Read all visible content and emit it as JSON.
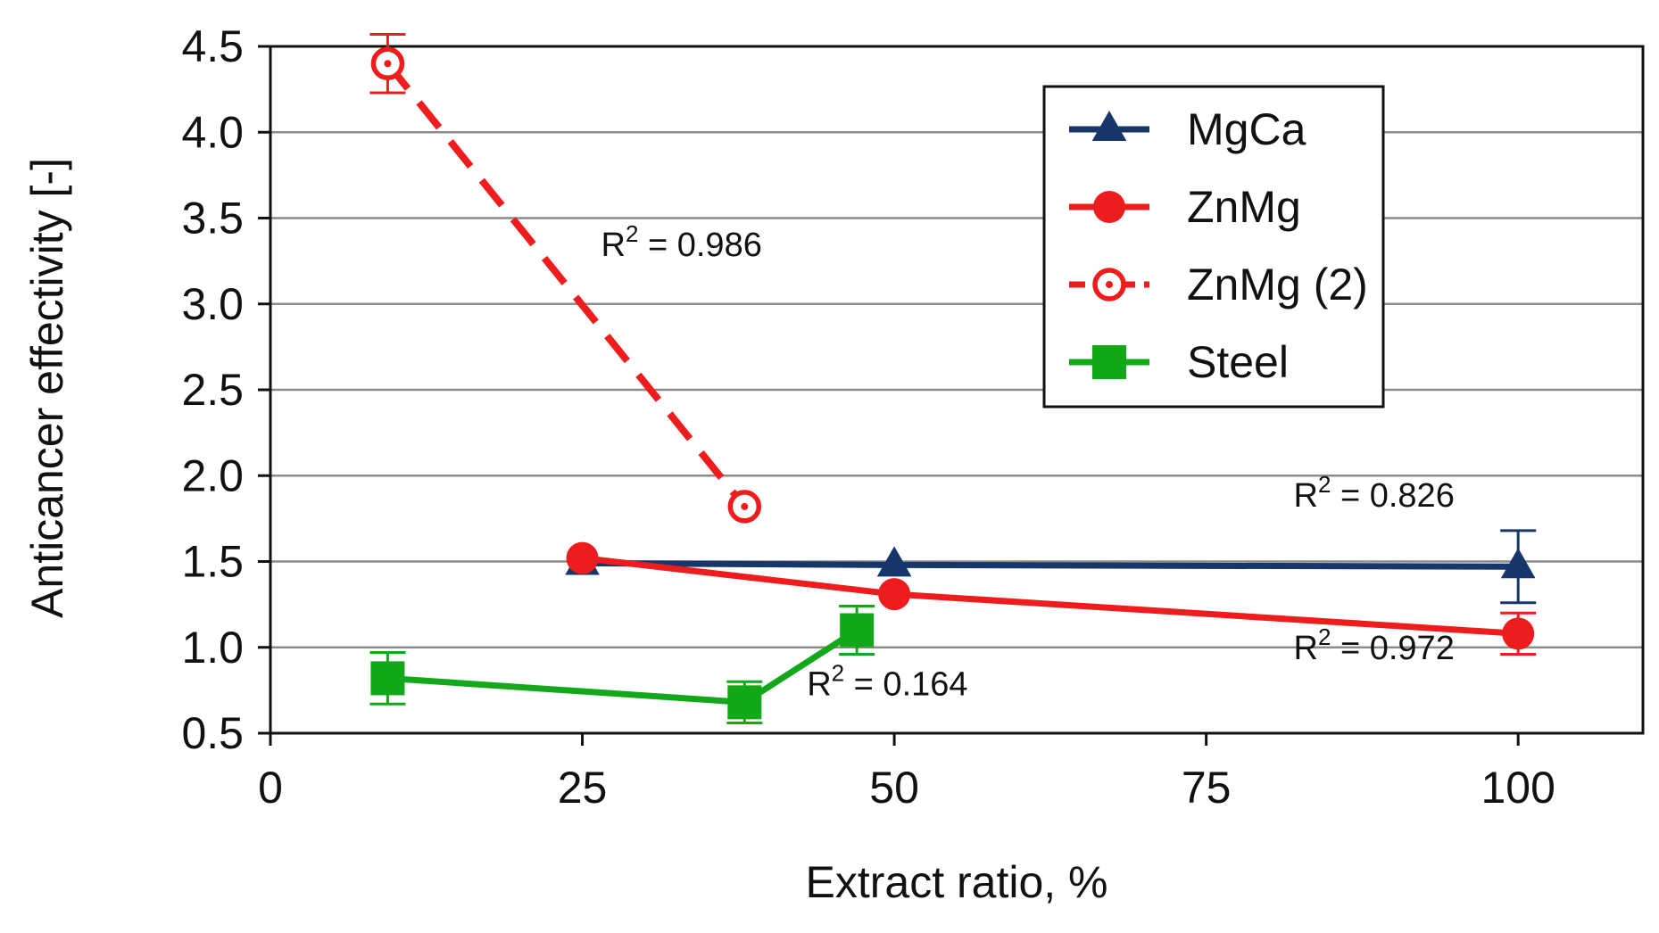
{
  "chart_data": {
    "type": "line",
    "title": "",
    "xlabel": "Extract ratio, %",
    "ylabel": "Anticancer effectivity [-]",
    "xlim": [
      0,
      110
    ],
    "ylim": [
      0.5,
      4.5
    ],
    "xticks": [
      0,
      25,
      50,
      75,
      100
    ],
    "xtick_labels": [
      "0",
      "25",
      "50",
      "75",
      "100"
    ],
    "yticks": [
      0.5,
      1.0,
      1.5,
      2.0,
      2.5,
      3.0,
      3.5,
      4.0,
      4.5
    ],
    "ytick_labels": [
      "0.5",
      "1.0",
      "1.5",
      "2.0",
      "2.5",
      "3.0",
      "3.5",
      "4.0",
      "4.5"
    ],
    "grid": true,
    "legend_position": "top-right",
    "series": [
      {
        "name": "MgCa",
        "color": "#17366b",
        "marker": "triangle",
        "line_style": "solid",
        "x": [
          25,
          50,
          100
        ],
        "y": [
          1.49,
          1.48,
          1.47
        ],
        "error": [
          0,
          0,
          0.21
        ]
      },
      {
        "name": "ZnMg",
        "color": "#ee1c1c",
        "marker": "circle",
        "line_style": "solid",
        "x": [
          25,
          50,
          100
        ],
        "y": [
          1.52,
          1.31,
          1.08
        ],
        "error": [
          0,
          0,
          0.12
        ]
      },
      {
        "name": "ZnMg (2)",
        "color": "#ee1c1c",
        "marker": "open-circle",
        "line_style": "dashed",
        "x": [
          9.4,
          38
        ],
        "y": [
          4.4,
          1.82
        ],
        "error": [
          0.17,
          0
        ]
      },
      {
        "name": "Steel",
        "color": "#12a81a",
        "marker": "square",
        "line_style": "solid",
        "x": [
          9.4,
          38,
          47
        ],
        "y": [
          0.82,
          0.68,
          1.1
        ],
        "error": [
          0.15,
          0.12,
          0.14
        ]
      }
    ],
    "annotations": [
      {
        "label": "R",
        "sup": "2",
        "text": " = 0.986",
        "x": 26.5,
        "y": 3.28
      },
      {
        "label": "R",
        "sup": "2",
        "text": " = 0.826",
        "x": 82.0,
        "y": 1.82
      },
      {
        "label": "R",
        "sup": "2",
        "text": " = 0.972",
        "x": 82.0,
        "y": 0.93
      },
      {
        "label": "R",
        "sup": "2",
        "text": " = 0.164",
        "x": 43.0,
        "y": 0.72
      }
    ]
  }
}
